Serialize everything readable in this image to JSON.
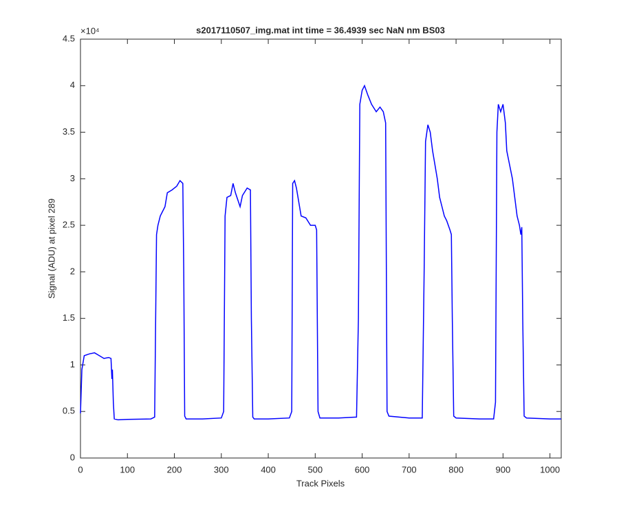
{
  "chart_data": {
    "type": "line",
    "title": "s2017110507_img.mat int time = 36.4939 sec  NaN nm BS03",
    "x_label": "Track Pixels",
    "y_label": "Signal (ADU) at pixel 289",
    "y_exponent_label": "×10⁴",
    "xlim": [
      0,
      1024
    ],
    "xticks": [
      0,
      100,
      200,
      300,
      400,
      500,
      600,
      700,
      800,
      900,
      1000
    ],
    "ylim": [
      0,
      4.5
    ],
    "yticks": [
      0,
      0.5,
      1,
      1.5,
      2,
      2.5,
      3,
      3.5,
      4,
      4.5
    ],
    "grid": false,
    "series": [
      {
        "color": "#0000ff",
        "x": [
          0,
          3,
          8,
          20,
          30,
          40,
          50,
          60,
          65,
          67,
          68,
          70,
          72,
          80,
          100,
          150,
          158,
          162,
          165,
          170,
          180,
          185,
          195,
          205,
          212,
          218,
          220,
          222,
          225,
          260,
          300,
          305,
          308,
          312,
          320,
          325,
          330,
          340,
          345,
          355,
          362,
          364,
          367,
          370,
          400,
          445,
          450,
          452,
          456,
          460,
          465,
          470,
          480,
          490,
          500,
          503,
          506,
          510,
          550,
          588,
          592,
          595,
          600,
          605,
          612,
          620,
          630,
          638,
          645,
          650,
          653,
          657,
          700,
          728,
          732,
          735,
          740,
          745,
          750,
          755,
          760,
          765,
          770,
          775,
          780,
          787,
          790,
          792,
          795,
          800,
          850,
          880,
          884,
          887,
          890,
          895,
          900,
          905,
          908,
          912,
          920,
          925,
          930,
          935,
          938,
          940,
          942,
          945,
          950,
          1000,
          1024
        ],
        "values": [
          0.48,
          0.95,
          1.1,
          1.12,
          1.13,
          1.1,
          1.07,
          1.08,
          1.07,
          0.85,
          0.95,
          0.6,
          0.42,
          0.41,
          0.415,
          0.42,
          0.44,
          2.4,
          2.5,
          2.6,
          2.7,
          2.85,
          2.88,
          2.92,
          2.98,
          2.95,
          2.0,
          0.45,
          0.42,
          0.42,
          0.43,
          0.5,
          2.6,
          2.8,
          2.82,
          2.95,
          2.85,
          2.7,
          2.82,
          2.9,
          2.88,
          1.5,
          0.44,
          0.42,
          0.42,
          0.43,
          0.5,
          2.95,
          2.98,
          2.9,
          2.75,
          2.6,
          2.58,
          2.5,
          2.5,
          2.45,
          0.5,
          0.43,
          0.43,
          0.44,
          1.5,
          3.8,
          3.95,
          4.0,
          3.9,
          3.8,
          3.72,
          3.77,
          3.72,
          3.6,
          0.5,
          0.45,
          0.43,
          0.43,
          2.0,
          3.4,
          3.58,
          3.5,
          3.3,
          3.15,
          3.0,
          2.8,
          2.7,
          2.6,
          2.55,
          2.45,
          2.4,
          1.5,
          0.45,
          0.43,
          0.42,
          0.42,
          0.6,
          3.5,
          3.8,
          3.72,
          3.8,
          3.6,
          3.3,
          3.2,
          3.0,
          2.8,
          2.6,
          2.5,
          2.4,
          2.48,
          1.5,
          0.45,
          0.43,
          0.42,
          0.42
        ]
      }
    ]
  }
}
